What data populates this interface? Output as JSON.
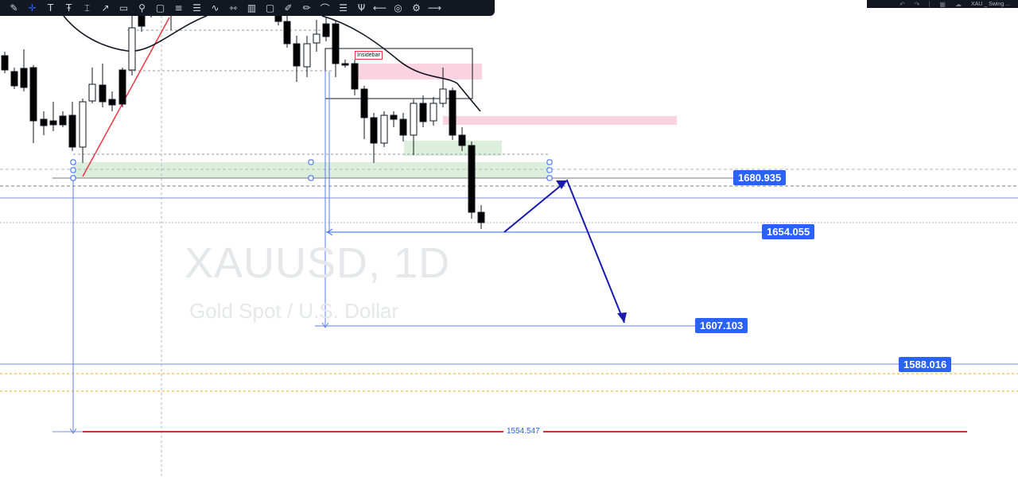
{
  "toolbar": {
    "tools": [
      {
        "icon": "brush-icon",
        "glyph": "✎"
      },
      {
        "icon": "crosshair-icon",
        "glyph": "✛",
        "active": true
      },
      {
        "icon": "text-icon",
        "glyph": "T"
      },
      {
        "icon": "anchored-text-icon",
        "glyph": "Ŧ"
      },
      {
        "icon": "ruler-text-icon",
        "glyph": "⌶"
      },
      {
        "icon": "arrow-icon",
        "glyph": "↗"
      },
      {
        "icon": "callout-icon",
        "glyph": "▭"
      },
      {
        "icon": "pin-icon",
        "glyph": "⚲"
      },
      {
        "icon": "comment-icon",
        "glyph": "▢"
      },
      {
        "icon": "fib-icon",
        "glyph": "≡"
      },
      {
        "icon": "fib-channel-icon",
        "glyph": "☰"
      },
      {
        "icon": "zigzag-icon",
        "glyph": "∿"
      },
      {
        "icon": "range-icon",
        "glyph": "⇿"
      },
      {
        "icon": "date-range-icon",
        "glyph": "▥"
      },
      {
        "icon": "rectangle-icon",
        "glyph": "▢"
      },
      {
        "icon": "pencil-icon",
        "glyph": "✐"
      },
      {
        "icon": "highlighter-icon",
        "glyph": "✏"
      },
      {
        "icon": "curve-icon",
        "glyph": "⌒"
      },
      {
        "icon": "lines-icon",
        "glyph": "☰"
      },
      {
        "icon": "pitchfork-icon",
        "glyph": "Ψ"
      },
      {
        "icon": "extended-line-icon",
        "glyph": "⟵"
      },
      {
        "icon": "target-icon",
        "glyph": "◎"
      },
      {
        "icon": "settings-icon",
        "glyph": "⚙"
      },
      {
        "icon": "more-icon",
        "glyph": "⟶"
      }
    ]
  },
  "header": {
    "undo_icon": "↶",
    "redo_icon": "↷",
    "layout_icon": "▦",
    "cloud_icon": "☁",
    "title": "XAU _ Swing ..."
  },
  "watermark": {
    "symbol": "XAUUSD, 1D",
    "description": "Gold Spot / U.S. Dollar"
  },
  "price_labels": {
    "p1": "1680.935",
    "p2": "1654.055",
    "p3": "1607.103",
    "p4": "1588.016",
    "p5": "1554.547"
  },
  "annotations": {
    "insidebar": "Insidebar"
  },
  "colors": {
    "accent": "#2962ff",
    "up": "#ffffff",
    "down": "#000000",
    "support_line": "#d32f2f",
    "supply_zone": "#f8bbd0",
    "demand_zone": "#c8e6c9"
  }
}
